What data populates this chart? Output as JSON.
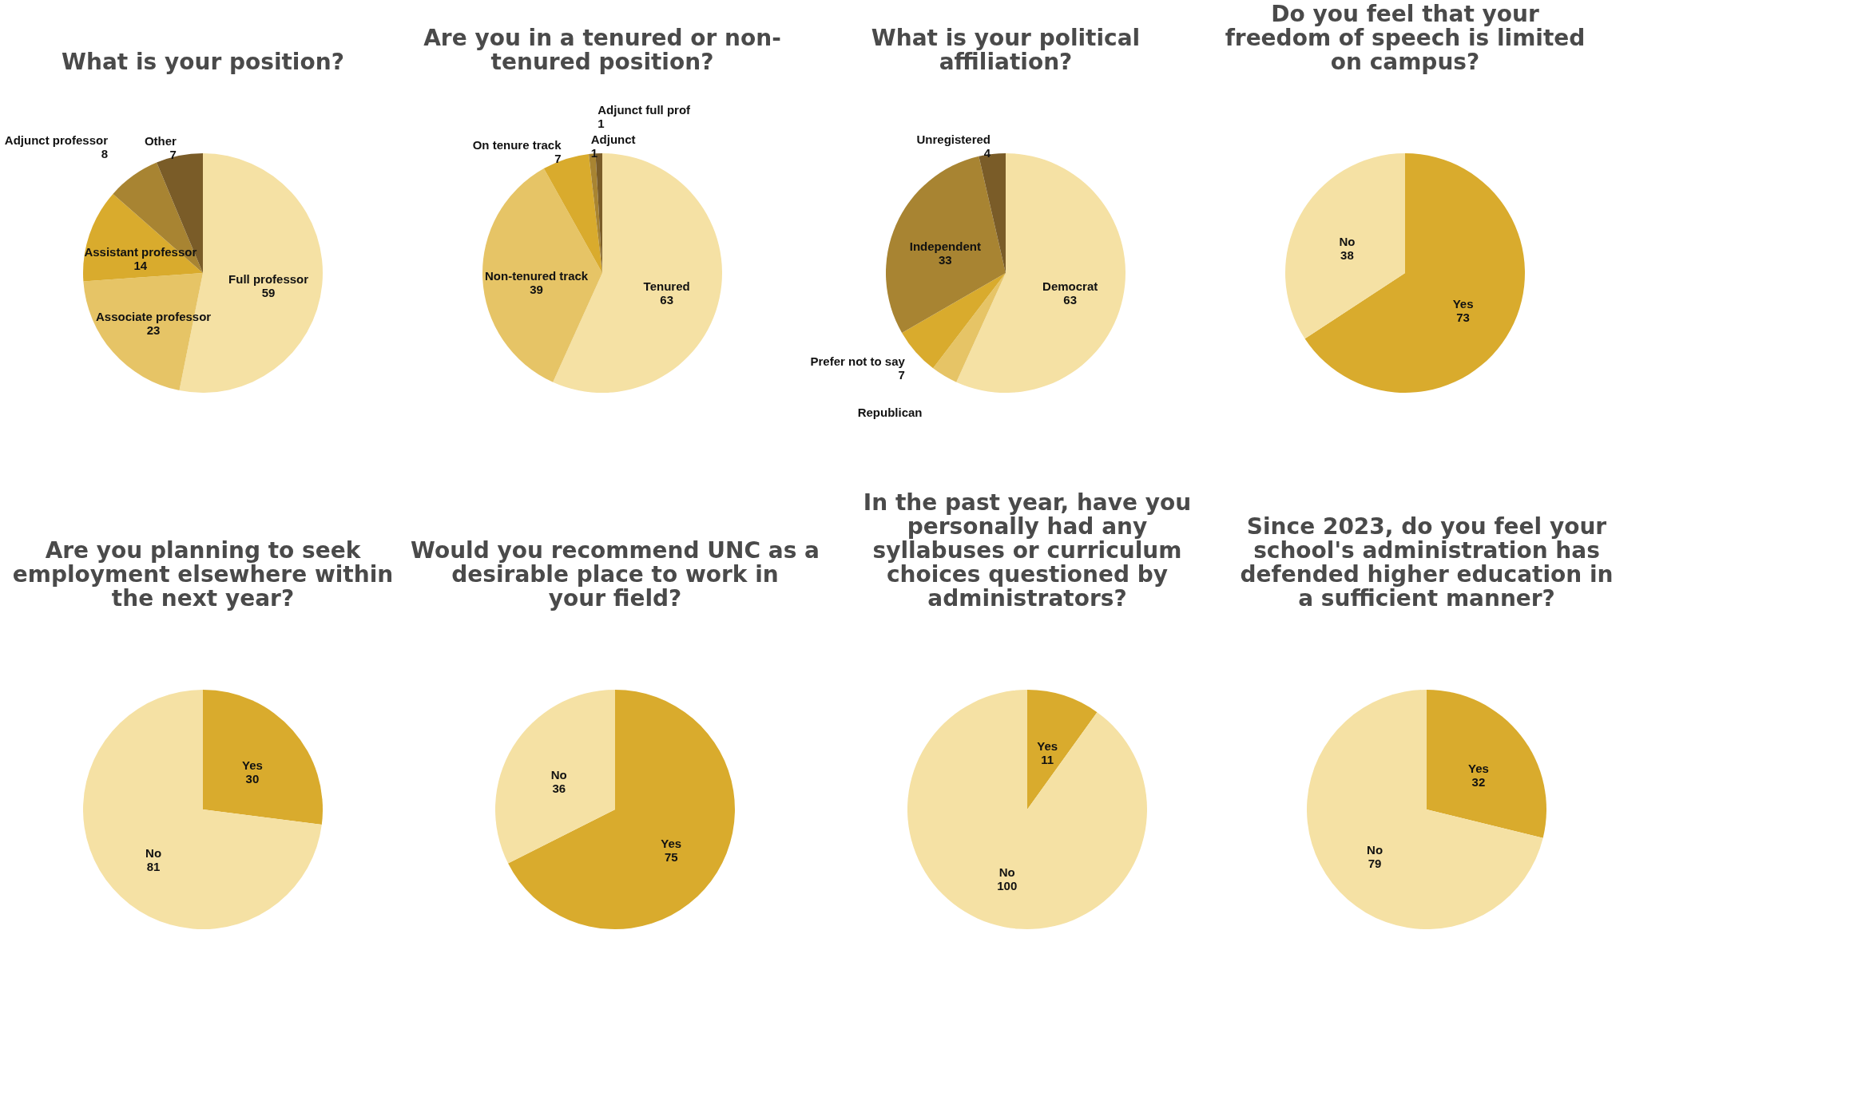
{
  "chart_data": [
    {
      "type": "pie",
      "title": "What is your position?",
      "categories": [
        "Full professor",
        "Associate professor",
        "Assistant professor",
        "Adjunct professor",
        "Other"
      ],
      "values": [
        59,
        23,
        14,
        8,
        7
      ],
      "colors": [
        "#f5e1a4",
        "#e6c466",
        "#d9ab2d",
        "#a88432",
        "#7a5c28"
      ],
      "data_labels": true,
      "legend": false
    },
    {
      "type": "pie",
      "title": "Are you in a tenured or non-tenured position?",
      "categories": [
        "Tenured",
        "Non-tenured track",
        "On tenure track",
        "Adjunct",
        "Adjunct full prof"
      ],
      "values": [
        63,
        39,
        7,
        1,
        1
      ],
      "colors": [
        "#f5e1a4",
        "#e6c466",
        "#d9ab2d",
        "#a88432",
        "#7a5c28"
      ],
      "data_labels": true,
      "legend": false
    },
    {
      "type": "pie",
      "title": "What is your political affiliation?",
      "categories": [
        "Democrat",
        "Republican",
        "Prefer not to say",
        "Independent",
        "Unregistered"
      ],
      "values": [
        63,
        4,
        7,
        33,
        4
      ],
      "value_labels": [
        "63",
        null,
        "7",
        "33",
        "4"
      ],
      "colors": [
        "#f5e1a4",
        "#e6c466",
        "#d9ab2d",
        "#a88432",
        "#7a5c28"
      ],
      "legend": false
    },
    {
      "type": "pie",
      "title": "Do you feel that your freedom of speech is limited on campus?",
      "categories": [
        "Yes",
        "No"
      ],
      "values": [
        73,
        38
      ],
      "colors": [
        "#d9ab2d",
        "#f5e1a4"
      ],
      "data_labels": true,
      "legend": false
    },
    {
      "type": "pie",
      "title": "Are you planning to seek employment elsewhere within the next year?",
      "categories": [
        "Yes",
        "No"
      ],
      "values": [
        30,
        81
      ],
      "colors": [
        "#d9ab2d",
        "#f5e1a4"
      ],
      "data_labels": true,
      "legend": false
    },
    {
      "type": "pie",
      "title": "Would you recommend UNC as a desirable place to work in your field?",
      "categories": [
        "Yes",
        "No"
      ],
      "values": [
        75,
        36
      ],
      "colors": [
        "#d9ab2d",
        "#f5e1a4"
      ],
      "data_labels": true,
      "legend": false
    },
    {
      "type": "pie",
      "title": "In the past year, have you personally had any syllabuses or curriculum choices questioned by administrators?",
      "categories": [
        "Yes",
        "No"
      ],
      "values": [
        11,
        100
      ],
      "colors": [
        "#d9ab2d",
        "#f5e1a4"
      ],
      "data_labels": true,
      "legend": false
    },
    {
      "type": "pie",
      "title": "Since 2023, do you feel your school's administration has defended higher education in a sufficient manner?",
      "categories": [
        "Yes",
        "No"
      ],
      "values": [
        32,
        79
      ],
      "colors": [
        "#d9ab2d",
        "#f5e1a4"
      ],
      "data_labels": true,
      "legend": false
    }
  ]
}
